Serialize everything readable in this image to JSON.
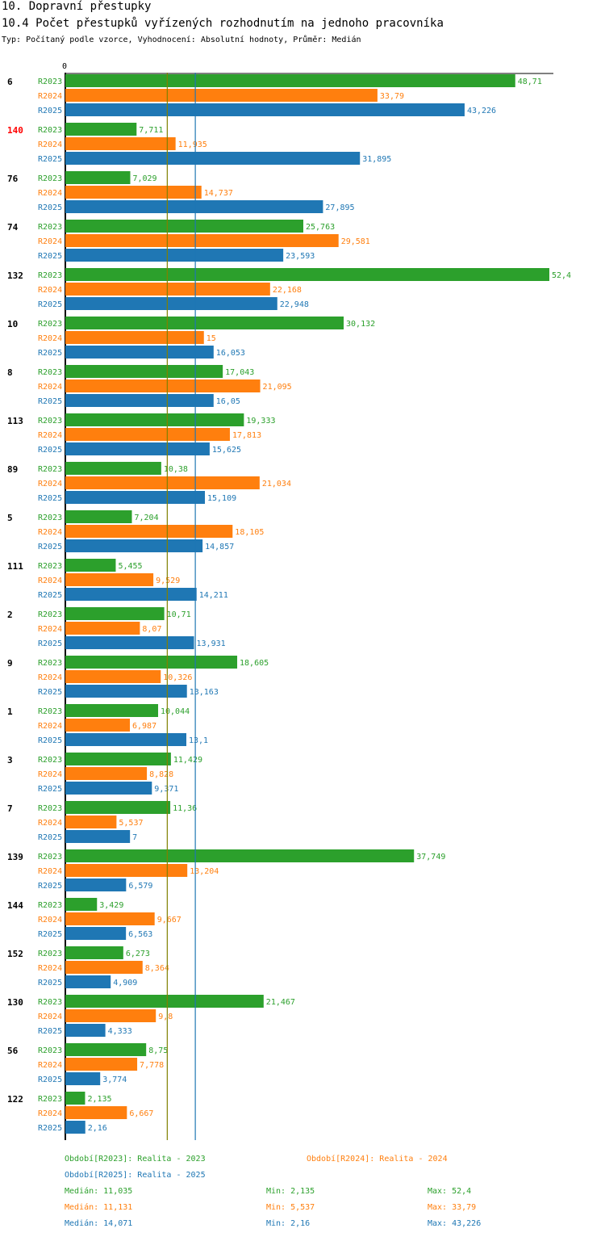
{
  "header": {
    "title": "10. Dopravní přestupky",
    "subtitle": "10.4 Počet přestupků vyřízených rozhodnutím na jednoho pracovníka",
    "info": "Typ: Počítaný podle vzorce, Vyhodnocení: Absolutní hodnoty, Průměr: Medián"
  },
  "chart_data": {
    "type": "bar",
    "orientation": "horizontal",
    "axis_zero_label": "0",
    "xlim": [
      0,
      52.4
    ],
    "categories": [
      "6",
      "140",
      "76",
      "74",
      "132",
      "10",
      "8",
      "113",
      "89",
      "5",
      "111",
      "2",
      "9",
      "1",
      "3",
      "7",
      "139",
      "144",
      "152",
      "130",
      "56",
      "122"
    ],
    "highlight_category": "140",
    "series": [
      {
        "name": "R2023",
        "color": "#2ca02c",
        "values": [
          48.71,
          7.711,
          7.029,
          25.763,
          52.4,
          30.132,
          17.043,
          19.333,
          10.38,
          7.204,
          5.455,
          10.71,
          18.605,
          10.044,
          11.429,
          11.36,
          37.749,
          3.429,
          6.273,
          21.467,
          8.75,
          2.135
        ],
        "labels": [
          "48,71",
          "7,711",
          "7,029",
          "25,763",
          "52,4",
          "30,132",
          "17,043",
          "19,333",
          "10,38",
          "7,204",
          "5,455",
          "10,71",
          "18,605",
          "10,044",
          "11,429",
          "11,36",
          "37,749",
          "3,429",
          "6,273",
          "21,467",
          "8,75",
          "2,135"
        ]
      },
      {
        "name": "R2024",
        "color": "#ff7f0e",
        "values": [
          33.79,
          11.935,
          14.737,
          29.581,
          22.168,
          15,
          21.095,
          17.813,
          21.034,
          18.105,
          9.529,
          8.07,
          10.326,
          6.987,
          8.828,
          5.537,
          13.204,
          9.667,
          8.364,
          9.8,
          7.778,
          6.667
        ],
        "labels": [
          "33,79",
          "11,935",
          "14,737",
          "29,581",
          "22,168",
          "15",
          "21,095",
          "17,813",
          "21,034",
          "18,105",
          "9,529",
          "8,07",
          "10,326",
          "6,987",
          "8,828",
          "5,537",
          "13,204",
          "9,667",
          "8,364",
          "9,8",
          "7,778",
          "6,667"
        ]
      },
      {
        "name": "R2025",
        "color": "#1f77b4",
        "values": [
          43.226,
          31.895,
          27.895,
          23.593,
          22.948,
          16.053,
          16.05,
          15.625,
          15.109,
          14.857,
          14.211,
          13.931,
          13.163,
          13.1,
          9.371,
          7,
          6.579,
          6.563,
          4.909,
          4.333,
          3.774,
          2.16
        ],
        "labels": [
          "43,226",
          "31,895",
          "27,895",
          "23,593",
          "22,948",
          "16,053",
          "16,05",
          "15,625",
          "15,109",
          "14,857",
          "14,211",
          "13,931",
          "13,163",
          "13,1",
          "9,371",
          "7",
          "6,579",
          "6,563",
          "4,909",
          "4,333",
          "3,774",
          "2,16"
        ]
      }
    ],
    "median_lines": [
      {
        "value": 11.035,
        "color": "#808000"
      },
      {
        "value": 14.071,
        "color": "#1f77b4"
      }
    ],
    "legend": [
      {
        "text": "Období[R2023]: Realita - 2023",
        "color": "#2ca02c"
      },
      {
        "text": "Období[R2024]: Realita - 2024",
        "color": "#ff7f0e"
      },
      {
        "text": "Období[R2025]: Realita - 2025",
        "color": "#1f77b4"
      }
    ],
    "stats": [
      {
        "median": "Medián: 11,035",
        "min": "Min: 2,135",
        "max": "Max: 52,4",
        "color": "#2ca02c"
      },
      {
        "median": "Medián: 11,131",
        "min": "Min: 5,537",
        "max": "Max: 33,79",
        "color": "#ff7f0e"
      },
      {
        "median": "Medián: 14,071",
        "min": "Min: 2,16",
        "max": "Max: 43,226",
        "color": "#1f77b4"
      }
    ]
  }
}
